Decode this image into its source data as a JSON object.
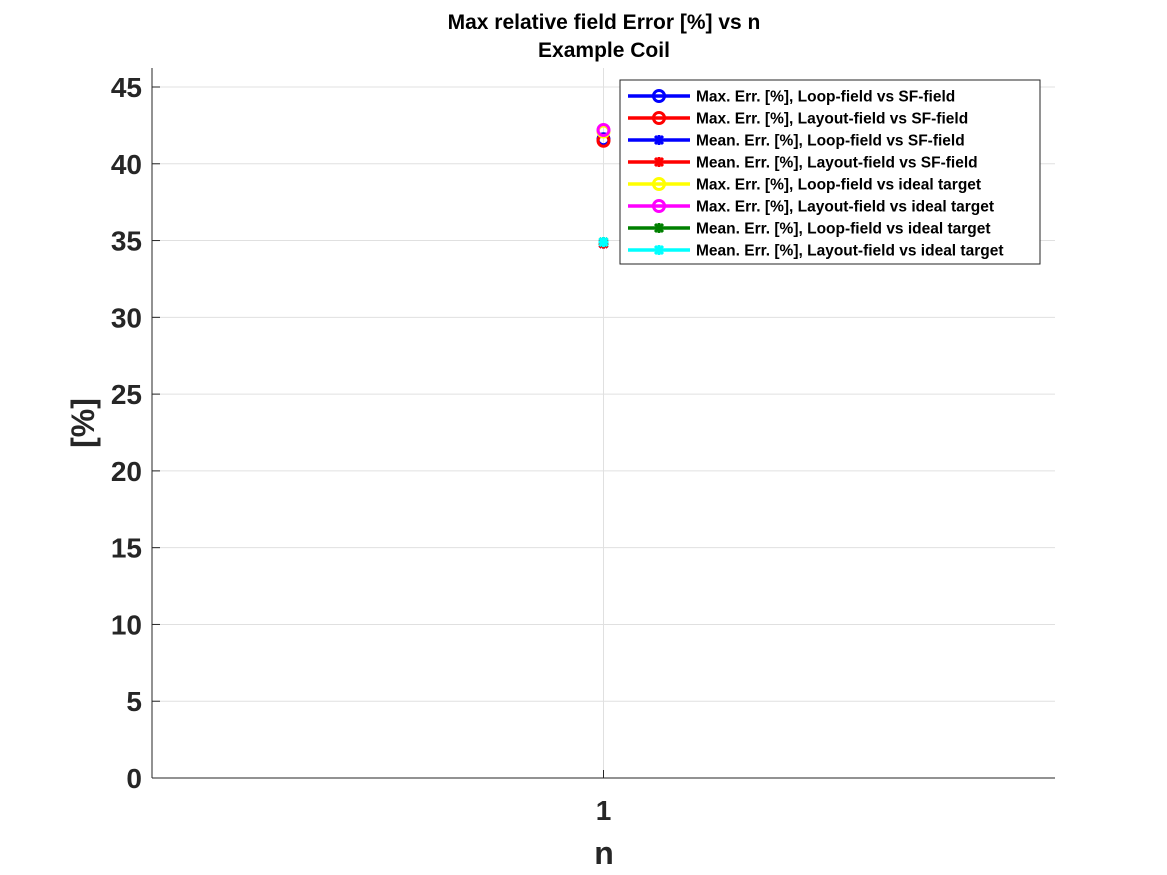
{
  "chart_data": {
    "type": "scatter",
    "title": "Max relative field Error [%] vs n",
    "subtitle": "Example Coil",
    "xlabel": "n",
    "ylabel": "[%]",
    "x_ticks": [
      "1"
    ],
    "y_ticks": [
      "0",
      "5",
      "10",
      "15",
      "20",
      "25",
      "30",
      "35",
      "40",
      "45"
    ],
    "xlim": [
      0.5,
      1.5
    ],
    "ylim": [
      0,
      45
    ],
    "grid": true,
    "legend_position": "top-right",
    "series": [
      {
        "name": "Max. Err. [%], Loop-field vs SF-field",
        "color": "#0000ff",
        "marker": "circle",
        "x": [
          1
        ],
        "y": [
          41.6
        ]
      },
      {
        "name": "Max. Err. [%], Layout-field vs SF-field",
        "color": "#ff0000",
        "marker": "circle",
        "x": [
          1
        ],
        "y": [
          41.5
        ]
      },
      {
        "name": "Mean. Err. [%], Loop-field vs SF-field",
        "color": "#0000ff",
        "marker": "star",
        "x": [
          1
        ],
        "y": [
          34.8
        ]
      },
      {
        "name": "Mean. Err. [%], Layout-field vs SF-field",
        "color": "#ff0000",
        "marker": "star",
        "x": [
          1
        ],
        "y": [
          34.8
        ]
      },
      {
        "name": "Max. Err. [%], Loop-field vs ideal target",
        "color": "#ffff00",
        "marker": "circle",
        "x": [
          1
        ],
        "y": [
          42.1
        ]
      },
      {
        "name": "Max. Err. [%], Layout-field vs ideal target",
        "color": "#ff00ff",
        "marker": "circle",
        "x": [
          1
        ],
        "y": [
          42.2
        ]
      },
      {
        "name": "Mean. Err. [%], Loop-field vs ideal target",
        "color": "#008000",
        "marker": "star",
        "x": [
          1
        ],
        "y": [
          34.9
        ]
      },
      {
        "name": "Mean. Err. [%], Layout-field vs ideal target",
        "color": "#00ffff",
        "marker": "star",
        "x": [
          1
        ],
        "y": [
          34.9
        ]
      }
    ]
  }
}
